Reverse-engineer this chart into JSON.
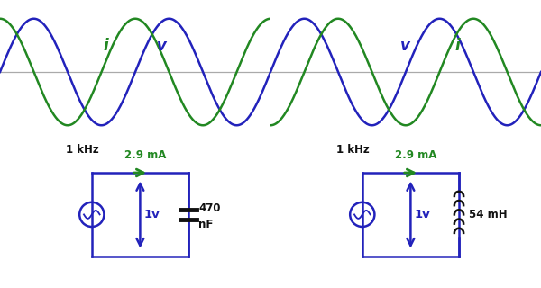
{
  "blue_color": "#2222bb",
  "green_color": "#228822",
  "bg_color": "#ffffff",
  "gray_line": "#aaaaaa",
  "black": "#111111",
  "freq_label": "1 kHz",
  "current_label": "2.9 mA",
  "voltage_label_v": "1v",
  "cap_label1": "470",
  "cap_label2": "nF",
  "ind_label": "54 mH",
  "fig_width": 6.0,
  "fig_height": 3.2,
  "dpi": 100
}
